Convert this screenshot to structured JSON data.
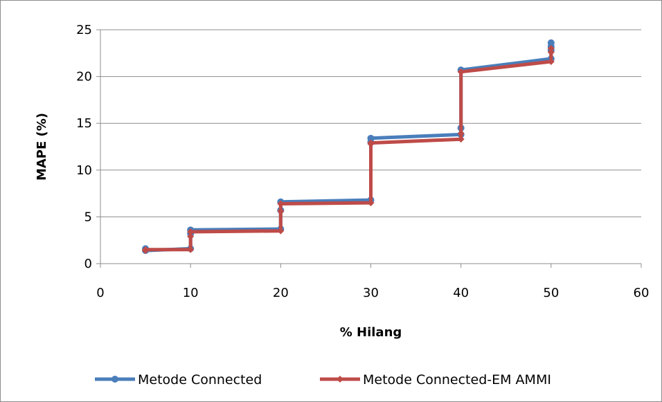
{
  "chart_data": {
    "type": "line",
    "title": "",
    "xlabel": "% Hilang",
    "ylabel": "MAPE (%)",
    "xlim": [
      0,
      60
    ],
    "ylim": [
      0,
      25
    ],
    "x_ticks": [
      "0",
      "10",
      "20",
      "30",
      "40",
      "50",
      "60"
    ],
    "y_ticks": [
      "0",
      "5",
      "10",
      "15",
      "20",
      "25"
    ],
    "grid": "horizontal",
    "legend_position": "bottom",
    "series": [
      {
        "name": "Metode Connected",
        "color": "#4a7ebb",
        "marker": "circle",
        "points": [
          [
            5,
            1.6
          ],
          [
            5,
            1.4
          ],
          [
            10,
            1.6
          ],
          [
            10,
            3.2
          ],
          [
            10,
            3.6
          ],
          [
            20,
            3.7
          ],
          [
            20,
            5.7
          ],
          [
            20,
            6.6
          ],
          [
            30,
            6.8
          ],
          [
            30,
            13.0
          ],
          [
            30,
            13.4
          ],
          [
            40,
            13.8
          ],
          [
            40,
            14.5
          ],
          [
            40,
            20.7
          ],
          [
            50,
            21.9
          ],
          [
            50,
            22.8
          ],
          [
            50,
            23.2
          ],
          [
            50,
            23.6
          ]
        ]
      },
      {
        "name": "Metode Connected-EM AMMI",
        "color": "#be4b48",
        "marker": "diamond",
        "points": [
          [
            5,
            1.4
          ],
          [
            5,
            1.5
          ],
          [
            10,
            1.5
          ],
          [
            10,
            2.9
          ],
          [
            10,
            3.4
          ],
          [
            20,
            3.5
          ],
          [
            20,
            5.6
          ],
          [
            20,
            6.4
          ],
          [
            30,
            6.5
          ],
          [
            30,
            12.8
          ],
          [
            30,
            12.9
          ],
          [
            40,
            13.3
          ],
          [
            40,
            13.9
          ],
          [
            40,
            20.5
          ],
          [
            50,
            21.6
          ],
          [
            50,
            22.6
          ],
          [
            50,
            23.0
          ]
        ]
      }
    ]
  }
}
